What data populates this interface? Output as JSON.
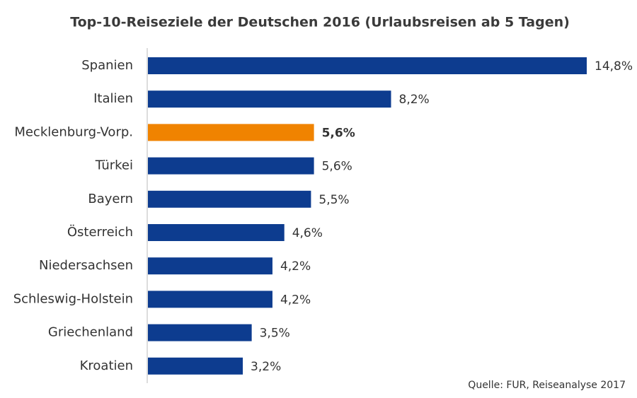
{
  "chart_data": {
    "type": "bar",
    "orientation": "horizontal",
    "title": "Top-10-Reiseziele der Deutschen 2016 (Urlaubsreisen ab 5 Tagen)",
    "categories": [
      "Spanien",
      "Italien",
      "Mecklenburg-Vorp.",
      "Türkei",
      "Bayern",
      "Österreich",
      "Niedersachsen",
      "Schleswig-Holstein",
      "Griechenland",
      "Kroatien"
    ],
    "values": [
      14.8,
      8.2,
      5.6,
      5.6,
      5.5,
      4.6,
      4.2,
      4.2,
      3.5,
      3.2
    ],
    "value_labels": [
      "14,8%",
      "8,2%",
      "5,6%",
      "5,6%",
      "5,5%",
      "4,6%",
      "4,2%",
      "4,2%",
      "3,5%",
      "3,2%"
    ],
    "colors": [
      "#0d3c8f",
      "#0d3c8f",
      "#f08300",
      "#0d3c8f",
      "#0d3c8f",
      "#0d3c8f",
      "#0d3c8f",
      "#0d3c8f",
      "#0d3c8f",
      "#0d3c8f"
    ],
    "bold": [
      false,
      false,
      true,
      false,
      false,
      false,
      false,
      false,
      false,
      false
    ],
    "source": "Quelle: FUR, Reiseanalyse 2017"
  }
}
